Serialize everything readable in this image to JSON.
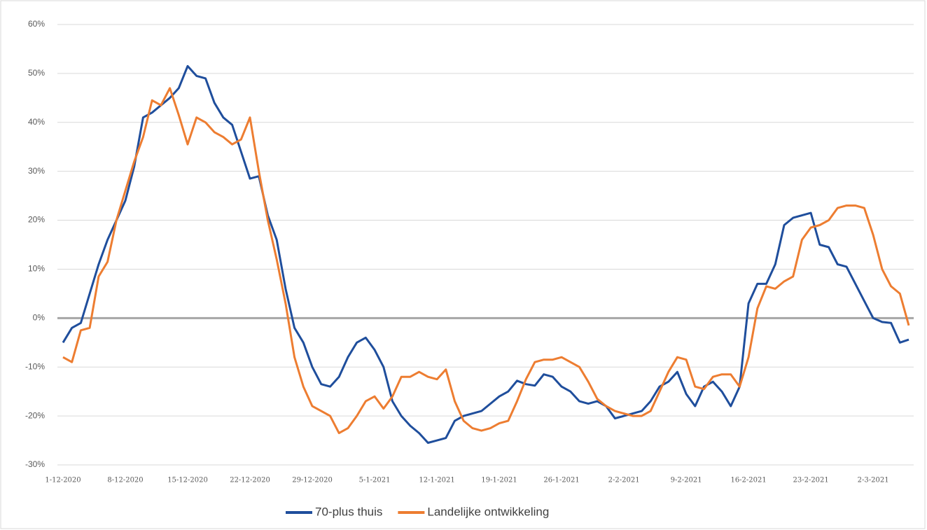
{
  "chart_data": {
    "type": "line",
    "categories": [
      "1-12-2020",
      null,
      null,
      null,
      null,
      null,
      null,
      "8-12-2020",
      null,
      null,
      null,
      null,
      null,
      null,
      "15-12-2020",
      null,
      null,
      null,
      null,
      null,
      null,
      "22-12-2020",
      null,
      null,
      null,
      null,
      null,
      null,
      "29-12-2020",
      null,
      null,
      null,
      null,
      null,
      null,
      "5-1-2021",
      null,
      null,
      null,
      null,
      null,
      null,
      "12-1-2021",
      null,
      null,
      null,
      null,
      null,
      null,
      "19-1-2021",
      null,
      null,
      null,
      null,
      null,
      null,
      "26-1-2021",
      null,
      null,
      null,
      null,
      null,
      null,
      "2-2-2021",
      null,
      null,
      null,
      null,
      null,
      null,
      "9-2-2021",
      null,
      null,
      null,
      null,
      null,
      null,
      "16-2-2021",
      null,
      null,
      null,
      null,
      null,
      null,
      "23-2-2021",
      null,
      null,
      null,
      null,
      null,
      null,
      "2-3-2021",
      null,
      null,
      null,
      null
    ],
    "series": [
      {
        "name": "70-plus thuis",
        "color": "#1f4e9c",
        "values": [
          -5,
          -2,
          -1,
          5,
          11,
          16,
          20,
          24,
          31,
          41,
          42,
          43.5,
          45,
          47,
          51.5,
          49.5,
          49,
          44,
          41,
          39.5,
          34,
          28.5,
          29,
          21,
          16,
          6,
          -2,
          -5,
          -10,
          -13.5,
          -14,
          -12,
          -8,
          -5,
          -4,
          -6.5,
          -10,
          -17,
          -20,
          -22,
          -23.5,
          -25.5,
          -25,
          -24.5,
          -21,
          -20,
          -19.5,
          -19,
          -17.5,
          -16,
          -15,
          -12.8,
          -13.5,
          -13.8,
          -11.5,
          -12,
          -14,
          -15,
          -17,
          -17.5,
          -17,
          -18,
          -20.5,
          -20,
          -19.5,
          -19,
          -17,
          -14,
          -13,
          -11,
          -15.5,
          -18,
          -14,
          -13,
          -15,
          -18,
          -14,
          3,
          7,
          7,
          11,
          19,
          20.5,
          21,
          21.5,
          15,
          14.5,
          11,
          10.5,
          7,
          3.5,
          0,
          -0.8,
          -1,
          -5,
          -4.4
        ]
      },
      {
        "name": "Landelijke ontwikkeling",
        "color": "#ed7d31",
        "values": [
          -8,
          -9,
          -2.5,
          -2,
          8.5,
          11.5,
          20,
          26,
          32,
          37,
          44.5,
          43.5,
          47,
          41.5,
          35.5,
          41,
          40,
          38,
          37,
          35.5,
          36.5,
          41,
          30,
          20,
          12,
          3,
          -8,
          -14,
          -18,
          -19,
          -20,
          -23.5,
          -22.5,
          -20,
          -17,
          -16,
          -18.5,
          -16,
          -12,
          -12,
          -11,
          -12,
          -12.5,
          -10.5,
          -17,
          -21,
          -22.5,
          -23,
          -22.5,
          -21.5,
          -21,
          -17,
          -12.5,
          -9,
          -8.5,
          -8.5,
          -8,
          -9,
          -10,
          -13,
          -16.5,
          -18,
          -19,
          -19.5,
          -20,
          -20,
          -19,
          -15,
          -11,
          -8,
          -8.5,
          -14,
          -14.5,
          -12,
          -11.5,
          -11.5,
          -14,
          -8,
          2,
          6.5,
          6,
          7.5,
          8.5,
          16,
          18.5,
          19,
          20,
          22.5,
          23,
          23,
          22.5,
          17,
          10,
          6.5,
          5,
          -1.5
        ]
      }
    ],
    "ylim": [
      -30,
      60
    ],
    "yticks": [
      {
        "value": -30,
        "label": "-30%"
      },
      {
        "value": -20,
        "label": "-20%"
      },
      {
        "value": -10,
        "label": "-10%"
      },
      {
        "value": 0,
        "label": "0%"
      },
      {
        "value": 10,
        "label": "10%"
      },
      {
        "value": 20,
        "label": "20%"
      },
      {
        "value": 30,
        "label": "30%"
      },
      {
        "value": 40,
        "label": "40%"
      },
      {
        "value": 50,
        "label": "50%"
      },
      {
        "value": 60,
        "label": "60%"
      }
    ],
    "grid": true,
    "legend": "bottom"
  }
}
